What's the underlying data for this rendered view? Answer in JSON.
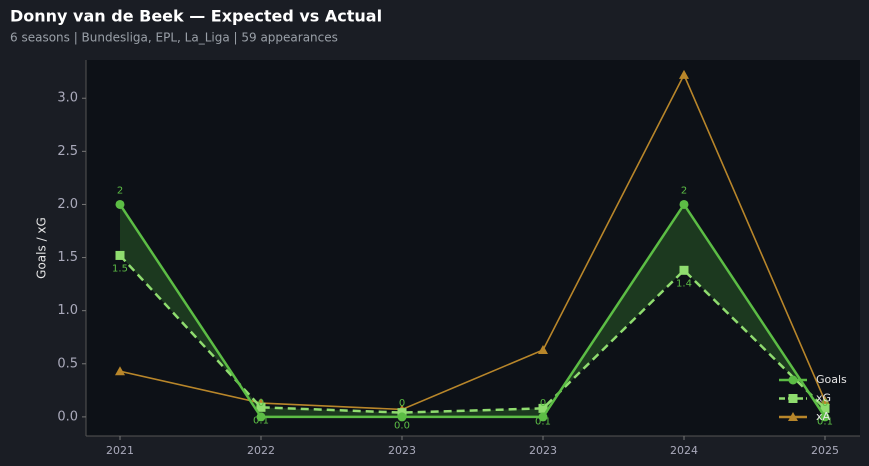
{
  "chart_data": {
    "type": "line",
    "title": "Donny van de Beek — Expected vs Actual",
    "subtitle": "6 seasons | Bundesliga, EPL, La_Liga | 59 appearances",
    "y_label": "Goals / xG",
    "categories": [
      "2021",
      "2022",
      "2023",
      "2023",
      "2024",
      "2025"
    ],
    "series": [
      {
        "name": "Goals",
        "color": "#5cbd45",
        "marker": "circle",
        "dash": false,
        "values": [
          2,
          0,
          0,
          0,
          2,
          0
        ]
      },
      {
        "name": "xG",
        "color": "#8fdc6f",
        "marker": "square",
        "dash": true,
        "values": [
          1.52,
          0.09,
          0.04,
          0.08,
          1.38,
          0.08
        ],
        "value_labels": [
          "1.5",
          "0.1",
          "0.0",
          "0.1",
          "1.4",
          "0.1"
        ]
      },
      {
        "name": "xA",
        "color": "#b8862a",
        "marker": "triangle",
        "dash": false,
        "values": [
          0.43,
          0.13,
          0.07,
          0.63,
          3.22,
          0.15
        ]
      }
    ],
    "ylim": [
      -0.18,
      3.36
    ],
    "yticks": [
      {
        "value": 0,
        "label": "0.0"
      },
      {
        "value": 0.5,
        "label": "0.5"
      },
      {
        "value": 1,
        "label": "1.0"
      },
      {
        "value": 1.5,
        "label": "1.5"
      },
      {
        "value": 2,
        "label": "2.0"
      },
      {
        "value": 2.5,
        "label": "2.5"
      },
      {
        "value": 3,
        "label": "3.0"
      }
    ],
    "legend": "lower right"
  }
}
